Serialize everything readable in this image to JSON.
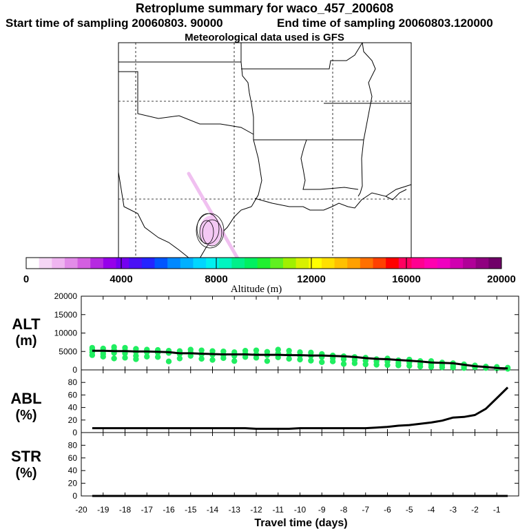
{
  "header": {
    "title": "Retroplume summary for waco_457_200608",
    "start_label": "Start time of sampling 20060803. 90000",
    "end_label": "End time of sampling 20060803.120000",
    "met_label": "Meteorological data used is GFS"
  },
  "colorbar": {
    "ticks": [
      "0",
      "4000",
      "8000",
      "12000",
      "16000",
      "20000"
    ],
    "label": "Altitude (m)",
    "colors": [
      "#ffffff",
      "#f5d6f5",
      "#efb5f0",
      "#e28ce8",
      "#d35fe0",
      "#b52ae0",
      "#9600ea",
      "#7400f0",
      "#4a10f5",
      "#2424ff",
      "#0055ff",
      "#0088ff",
      "#00b0ff",
      "#00d6ff",
      "#00f0f0",
      "#00f5c0",
      "#00f08a",
      "#00f060",
      "#20f030",
      "#60f020",
      "#a0f000",
      "#d8f000",
      "#ffff00",
      "#ffe000",
      "#ffc000",
      "#ffa000",
      "#ff7000",
      "#ff4000",
      "#ff0000",
      "#ff0060",
      "#ff0090",
      "#ff00b0",
      "#f000c0",
      "#d000b0",
      "#b00098",
      "#900080",
      "#700068"
    ]
  },
  "chart_data": [
    {
      "type": "line",
      "panel": "ALT",
      "title": "ALT (m)",
      "ylabel_line1": "ALT",
      "ylabel_line2": "(m)",
      "ylim": [
        0,
        20000
      ],
      "yticks": [
        "0",
        "5000",
        "10000",
        "15000",
        "20000"
      ],
      "series": [
        {
          "name": "median altitude",
          "x": [
            -19.5,
            -19,
            -18.5,
            -18,
            -17.5,
            -17,
            -16.5,
            -16,
            -15.5,
            -15,
            -14.5,
            -14,
            -13.5,
            -13,
            -12.5,
            -12,
            -11.5,
            -11,
            -10.5,
            -10,
            -9.5,
            -9,
            -8.5,
            -8,
            -7.5,
            -7,
            -6.5,
            -6,
            -5.5,
            -5,
            -4.5,
            -4,
            -3.5,
            -3,
            -2.5,
            -2,
            -1.5,
            -1,
            -0.5
          ],
          "values": [
            5200,
            5200,
            5100,
            5100,
            5000,
            5000,
            4900,
            4800,
            4500,
            4500,
            4400,
            4300,
            4200,
            4200,
            4200,
            4100,
            4100,
            4100,
            4000,
            4000,
            3900,
            3900,
            3800,
            3700,
            3500,
            3200,
            3000,
            2900,
            2700,
            2500,
            2300,
            2000,
            1900,
            1800,
            1400,
            1000,
            800,
            500,
            400
          ]
        }
      ],
      "scatter_color": "#20ee60",
      "scatter": [
        [
          -19.5,
          6000
        ],
        [
          -19.5,
          5500
        ],
        [
          -19.5,
          4800
        ],
        [
          -19.5,
          4000
        ],
        [
          -19,
          5800
        ],
        [
          -19,
          5000
        ],
        [
          -19,
          4300
        ],
        [
          -19,
          3600
        ],
        [
          -18.5,
          6200
        ],
        [
          -18.5,
          5400
        ],
        [
          -18.5,
          4600
        ],
        [
          -18.5,
          3100
        ],
        [
          -18,
          6000
        ],
        [
          -18,
          5200
        ],
        [
          -18,
          4500
        ],
        [
          -18,
          3300
        ],
        [
          -17.5,
          5700
        ],
        [
          -17.5,
          4900
        ],
        [
          -17.5,
          3800
        ],
        [
          -17.5,
          2900
        ],
        [
          -17,
          5500
        ],
        [
          -17,
          4800
        ],
        [
          -17,
          3600
        ],
        [
          -16.5,
          5400
        ],
        [
          -16.5,
          4700
        ],
        [
          -16.5,
          3500
        ],
        [
          -16,
          5200
        ],
        [
          -16,
          4600
        ],
        [
          -16,
          2300
        ],
        [
          -15.5,
          5100
        ],
        [
          -15.5,
          4300
        ],
        [
          -15.5,
          3100
        ],
        [
          -15,
          5500
        ],
        [
          -15,
          4700
        ],
        [
          -15,
          3800
        ],
        [
          -14.5,
          5300
        ],
        [
          -14.5,
          4200
        ],
        [
          -14.5,
          3000
        ],
        [
          -14,
          5100
        ],
        [
          -14,
          4100
        ],
        [
          -14,
          2700
        ],
        [
          -13.5,
          5000
        ],
        [
          -13.5,
          4000
        ],
        [
          -13.5,
          3200
        ],
        [
          -13,
          4800
        ],
        [
          -13,
          3800
        ],
        [
          -13,
          2400
        ],
        [
          -12.5,
          5200
        ],
        [
          -12.5,
          4400
        ],
        [
          -12.5,
          3500
        ],
        [
          -12,
          5300
        ],
        [
          -12,
          4200
        ],
        [
          -12,
          3300
        ],
        [
          -11.5,
          4900
        ],
        [
          -11.5,
          4000
        ],
        [
          -11.5,
          2400
        ],
        [
          -11,
          5500
        ],
        [
          -11,
          4500
        ],
        [
          -11,
          3400
        ],
        [
          -10.5,
          5200
        ],
        [
          -10.5,
          4200
        ],
        [
          -10.5,
          3000
        ],
        [
          -10,
          4800
        ],
        [
          -10,
          3900
        ],
        [
          -10,
          2800
        ],
        [
          -9.5,
          4700
        ],
        [
          -9.5,
          3800
        ],
        [
          -9.5,
          2500
        ],
        [
          -9,
          4300
        ],
        [
          -9,
          3500
        ],
        [
          -9,
          2100
        ],
        [
          -8.5,
          3900
        ],
        [
          -8.5,
          3200
        ],
        [
          -8.5,
          2300
        ],
        [
          -8,
          3700
        ],
        [
          -8,
          2900
        ],
        [
          -8,
          1600
        ],
        [
          -7.5,
          3500
        ],
        [
          -7.5,
          2700
        ],
        [
          -7.5,
          1800
        ],
        [
          -7,
          3300
        ],
        [
          -7,
          2500
        ],
        [
          -7,
          1500
        ],
        [
          -6.5,
          2900
        ],
        [
          -6.5,
          2300
        ],
        [
          -6.5,
          1400
        ],
        [
          -6,
          3100
        ],
        [
          -6,
          2300
        ],
        [
          -6,
          1300
        ],
        [
          -5.5,
          2600
        ],
        [
          -5.5,
          1900
        ],
        [
          -5.5,
          1200
        ],
        [
          -5,
          2800
        ],
        [
          -5,
          2000
        ],
        [
          -5,
          1100
        ],
        [
          -4.5,
          2400
        ],
        [
          -4.5,
          1700
        ],
        [
          -4.5,
          900
        ],
        [
          -4,
          2400
        ],
        [
          -4,
          1500
        ],
        [
          -4,
          800
        ],
        [
          -3.5,
          2000
        ],
        [
          -3.5,
          1300
        ],
        [
          -3.5,
          700
        ],
        [
          -3,
          1800
        ],
        [
          -3,
          1100
        ],
        [
          -3,
          600
        ],
        [
          -2.5,
          1500
        ],
        [
          -2.5,
          900
        ],
        [
          -2.5,
          500
        ],
        [
          -2,
          1200
        ],
        [
          -2,
          700
        ],
        [
          -1.5,
          900
        ],
        [
          -1.5,
          500
        ],
        [
          -1,
          800
        ],
        [
          -1,
          400
        ],
        [
          -0.5,
          600
        ],
        [
          -0.5,
          300
        ]
      ]
    },
    {
      "type": "line",
      "panel": "ABL",
      "title": "ABL (%)",
      "ylabel_line1": "ABL",
      "ylabel_line2": "(%)",
      "ylim": [
        0,
        100
      ],
      "yticks": [
        "0",
        "20",
        "40",
        "60",
        "80"
      ],
      "series": [
        {
          "name": "fraction in boundary layer",
          "x": [
            -19.5,
            -19,
            -18.5,
            -18,
            -17.5,
            -17,
            -16.5,
            -16,
            -15.5,
            -15,
            -14.5,
            -14,
            -13.5,
            -13,
            -12.5,
            -12,
            -11.5,
            -11,
            -10.5,
            -10,
            -9.5,
            -9,
            -8.5,
            -8,
            -7.5,
            -7,
            -6.5,
            -6,
            -5.5,
            -5,
            -4.5,
            -4,
            -3.5,
            -3,
            -2.5,
            -2,
            -1.5,
            -1,
            -0.5
          ],
          "values": [
            7,
            7,
            7,
            7,
            7,
            7,
            7,
            7,
            7,
            7,
            7,
            7,
            7,
            7,
            7,
            6,
            6,
            6,
            6,
            7,
            7,
            7,
            7,
            7,
            7,
            7,
            8,
            9,
            11,
            12,
            14,
            16,
            19,
            24,
            25,
            28,
            38,
            55,
            72
          ]
        }
      ]
    },
    {
      "type": "line",
      "panel": "STR",
      "title": "STR (%)",
      "ylabel_line1": "STR",
      "ylabel_line2": "(%)",
      "ylim": [
        0,
        100
      ],
      "yticks": [
        "0",
        "20",
        "40",
        "60",
        "80"
      ],
      "series": [
        {
          "name": "fraction in stratosphere",
          "x": [
            -19.5,
            -19,
            -18.5,
            -18,
            -17.5,
            -17,
            -16.5,
            -16,
            -15.5,
            -15,
            -14.5,
            -14,
            -13.5,
            -13,
            -12.5,
            -12,
            -11.5,
            -11,
            -10.5,
            -10,
            -9.5,
            -9,
            -8.5,
            -8,
            -7.5,
            -7,
            -6.5,
            -6,
            -5.5,
            -5,
            -4.5,
            -4,
            -3.5,
            -3,
            -2.5,
            -2,
            -1.5,
            -1,
            -0.5
          ],
          "values": [
            0,
            0,
            0,
            0,
            0,
            0,
            0,
            0,
            0,
            0,
            0,
            0,
            0,
            0,
            0,
            0,
            0,
            0,
            0,
            0,
            0,
            0,
            0,
            0,
            0,
            0,
            0,
            0,
            0,
            0,
            0,
            0,
            0,
            0,
            0,
            0,
            0,
            0,
            0
          ]
        }
      ],
      "xlim": [
        -20,
        0
      ],
      "xticks": [
        "-20",
        "-19",
        "-18",
        "-17",
        "-16",
        "-15",
        "-14",
        "-13",
        "-12",
        "-11",
        "-10",
        "-9",
        "-8",
        "-7",
        "-6",
        "-5",
        "-4",
        "-3",
        "-2",
        "-1"
      ],
      "xlabel": "Travel time (days)"
    }
  ]
}
